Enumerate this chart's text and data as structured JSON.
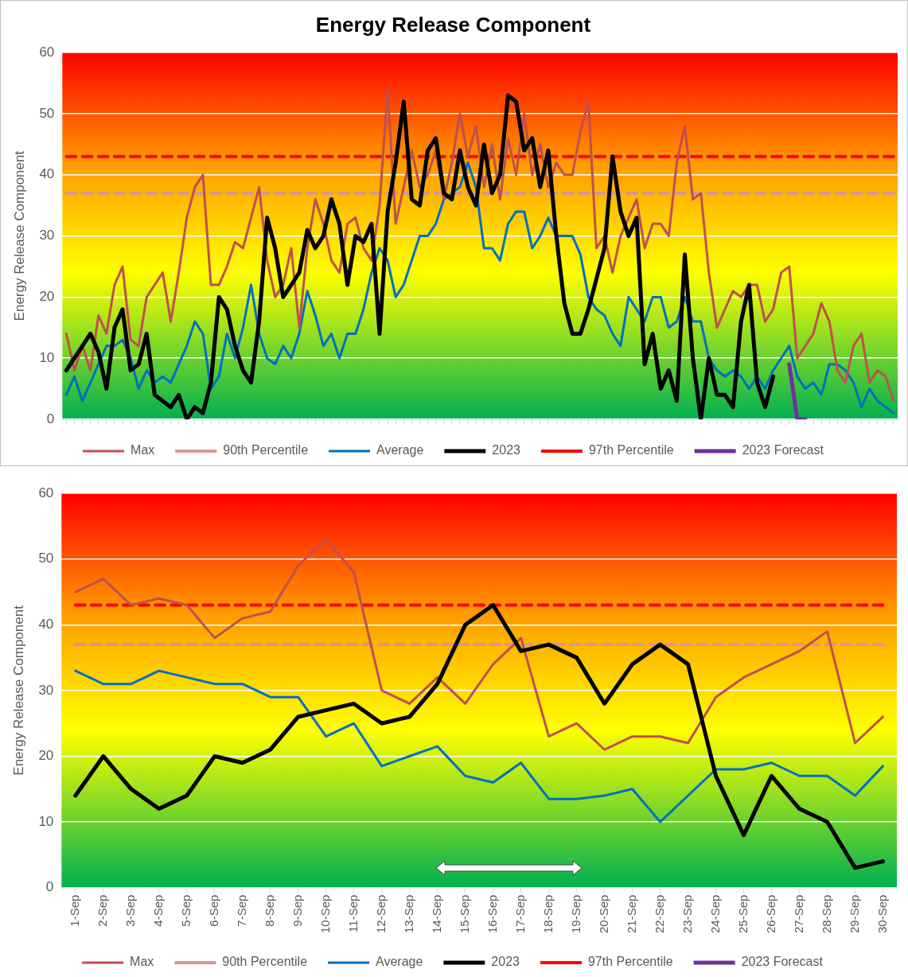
{
  "chart_data": [
    {
      "type": "line",
      "title": "Energy Release Component",
      "ylabel": "Energy Release Component",
      "categories": [
        null,
        null,
        null,
        null,
        null,
        null,
        null,
        null,
        null,
        null,
        null,
        null,
        null,
        null,
        null,
        null,
        null,
        null,
        null,
        null,
        null,
        null,
        null,
        null,
        null,
        null,
        null,
        null,
        null,
        null,
        null,
        null,
        null,
        null,
        null,
        null,
        null,
        null,
        null,
        null,
        null,
        null,
        null,
        null,
        null,
        null,
        null,
        null,
        null,
        null,
        null,
        null,
        null,
        null,
        null,
        null,
        null,
        null,
        null,
        null,
        null,
        null,
        null,
        null,
        null,
        null,
        null,
        null,
        null,
        null,
        null,
        null,
        null,
        null,
        null,
        null,
        null,
        null,
        null,
        null,
        null,
        null,
        null,
        null,
        null,
        null,
        null,
        null,
        null,
        null,
        null,
        null,
        null,
        null,
        null,
        null,
        null,
        null,
        null,
        null,
        null,
        null,
        null,
        null
      ],
      "series": [
        {
          "name": "Max",
          "color": "#c0504d",
          "values": [
            14,
            8,
            12,
            8,
            17,
            14,
            22,
            25,
            13,
            12,
            20,
            22,
            24,
            16,
            24,
            33,
            38,
            40,
            22,
            22,
            25,
            29,
            28,
            33,
            38,
            26,
            20,
            22,
            28,
            15,
            28,
            36,
            32,
            26,
            24,
            32,
            33,
            28,
            26,
            35,
            54,
            32,
            38,
            44,
            38,
            40,
            44,
            36,
            42,
            50,
            43,
            48,
            38,
            45,
            36,
            46,
            40,
            50,
            40,
            45,
            38,
            42,
            40,
            40,
            47,
            52,
            28,
            30,
            24,
            30,
            33,
            36,
            28,
            32,
            32,
            30,
            42,
            48,
            36,
            37,
            24,
            15,
            18,
            21,
            20,
            22,
            22,
            16,
            18,
            24,
            25,
            10,
            12,
            14,
            19,
            16,
            8,
            6,
            12,
            14,
            6,
            8,
            7,
            3
          ]
        },
        {
          "name": "90th Percentile",
          "color": "#d99694",
          "line_style": "dashed",
          "values": [
            37,
            37,
            37,
            37,
            37,
            37,
            37,
            37,
            37,
            37,
            37,
            37,
            37,
            37,
            37,
            37,
            37,
            37,
            37,
            37,
            37,
            37,
            37,
            37,
            37,
            37,
            37,
            37,
            37,
            37,
            37,
            37,
            37,
            37,
            37,
            37,
            37,
            37,
            37,
            37,
            37,
            37,
            37,
            37,
            37,
            37,
            37,
            37,
            37,
            37,
            37,
            37,
            37,
            37,
            37,
            37,
            37,
            37,
            37,
            37,
            37,
            37,
            37,
            37,
            37,
            37,
            37,
            37,
            37,
            37,
            37,
            37,
            37,
            37,
            37,
            37,
            37,
            37,
            37,
            37,
            37,
            37,
            37,
            37,
            37,
            37,
            37,
            37,
            37,
            37,
            37,
            37,
            37,
            37,
            37,
            37,
            37,
            37,
            37,
            37,
            37,
            37,
            37,
            37
          ]
        },
        {
          "name": "Average",
          "color": "#0070c0",
          "values": [
            4,
            7,
            3,
            6,
            9,
            12,
            12,
            13,
            10,
            5,
            8,
            6,
            7,
            6,
            9,
            12,
            16,
            14,
            5,
            7,
            14,
            10,
            15,
            22,
            14,
            10,
            9,
            12,
            10,
            14,
            21,
            17,
            12,
            14,
            10,
            14,
            14,
            18,
            24,
            28,
            26,
            20,
            22,
            26,
            30,
            30,
            32,
            36,
            37,
            38,
            42,
            38,
            28,
            28,
            26,
            32,
            34,
            34,
            28,
            30,
            33,
            30,
            30,
            30,
            27,
            20,
            18,
            17,
            14,
            12,
            20,
            18,
            16,
            20,
            20,
            15,
            16,
            20,
            16,
            16,
            10,
            8,
            7,
            8,
            7,
            5,
            7,
            5,
            8,
            10,
            12,
            7,
            5,
            6,
            4,
            9,
            9,
            8,
            6,
            2,
            5,
            3,
            2,
            1
          ]
        },
        {
          "name": "2023",
          "color": "#000000",
          "values": [
            8,
            10,
            12,
            14,
            11,
            5,
            15,
            18,
            8,
            9,
            14,
            4,
            3,
            2,
            4,
            0,
            2,
            1,
            6,
            20,
            18,
            12,
            8,
            6,
            16,
            33,
            28,
            20,
            22,
            24,
            31,
            28,
            30,
            36,
            32,
            22,
            30,
            29,
            32,
            14,
            34,
            42,
            52,
            36,
            35,
            44,
            46,
            37,
            36,
            44,
            38,
            35,
            45,
            37,
            40,
            53,
            52,
            44,
            46,
            38,
            44,
            30,
            19,
            14,
            14,
            18,
            23,
            28,
            43,
            34,
            30,
            33,
            9,
            14,
            5,
            8,
            3,
            27,
            10,
            0,
            10,
            4,
            4,
            2,
            16,
            22,
            6,
            2,
            7,
            null,
            null,
            null,
            null,
            null,
            null,
            null,
            null,
            null,
            null,
            null,
            null,
            null,
            null,
            null
          ]
        },
        {
          "name": "97th Percentile",
          "color": "#ff0000",
          "line_style": "dashed",
          "values": [
            43,
            43,
            43,
            43,
            43,
            43,
            43,
            43,
            43,
            43,
            43,
            43,
            43,
            43,
            43,
            43,
            43,
            43,
            43,
            43,
            43,
            43,
            43,
            43,
            43,
            43,
            43,
            43,
            43,
            43,
            43,
            43,
            43,
            43,
            43,
            43,
            43,
            43,
            43,
            43,
            43,
            43,
            43,
            43,
            43,
            43,
            43,
            43,
            43,
            43,
            43,
            43,
            43,
            43,
            43,
            43,
            43,
            43,
            43,
            43,
            43,
            43,
            43,
            43,
            43,
            43,
            43,
            43,
            43,
            43,
            43,
            43,
            43,
            43,
            43,
            43,
            43,
            43,
            43,
            43,
            43,
            43,
            43,
            43,
            43,
            43,
            43,
            43,
            43,
            43,
            43,
            43,
            43,
            43,
            43,
            43,
            43,
            43,
            43,
            43,
            43,
            43,
            43,
            43
          ]
        },
        {
          "name": "2023 Forecast",
          "color": "#7030a0",
          "values": [
            null,
            null,
            null,
            null,
            null,
            null,
            null,
            null,
            null,
            null,
            null,
            null,
            null,
            null,
            null,
            null,
            null,
            null,
            null,
            null,
            null,
            null,
            null,
            null,
            null,
            null,
            null,
            null,
            null,
            null,
            null,
            null,
            null,
            null,
            null,
            null,
            null,
            null,
            null,
            null,
            null,
            null,
            null,
            null,
            null,
            null,
            null,
            null,
            null,
            null,
            null,
            null,
            null,
            null,
            null,
            null,
            null,
            null,
            null,
            null,
            null,
            null,
            null,
            null,
            null,
            null,
            null,
            null,
            null,
            null,
            null,
            null,
            null,
            null,
            null,
            null,
            null,
            null,
            null,
            null,
            null,
            null,
            null,
            null,
            null,
            null,
            null,
            null,
            null,
            null,
            9,
            0,
            0,
            null,
            null,
            null,
            null,
            null,
            null,
            null,
            null,
            null,
            null,
            null
          ]
        }
      ],
      "ylim": [
        0,
        60
      ],
      "yticks": [
        0,
        10,
        20,
        30,
        40,
        50,
        60
      ],
      "grid": "y",
      "legend": "bottom",
      "tick_labels": "y",
      "marker": "none"
    },
    {
      "type": "line",
      "ylabel": "Energy Release Component",
      "categories": [
        "1-Sep",
        "2-Sep",
        "3-Sep",
        "4-Sep",
        "5-Sep",
        "6-Sep",
        "7-Sep",
        "8-Sep",
        "9-Sep",
        "10-Sep",
        "11-Sep",
        "12-Sep",
        "13-Sep",
        "14-Sep",
        "15-Sep",
        "16-Sep",
        "17-Sep",
        "18-Sep",
        "19-Sep",
        "20-Sep",
        "21-Sep",
        "22-Sep",
        "23-Sep",
        "24-Sep",
        "25-Sep",
        "26-Sep",
        "27-Sep",
        "28-Sep",
        "29-Sep",
        "30-Sep"
      ],
      "series": [
        {
          "name": "Max",
          "color": "#c0504d",
          "values": [
            45,
            47,
            43,
            44,
            43,
            38,
            41,
            42,
            49,
            53,
            48,
            30,
            28,
            32,
            28,
            34,
            38,
            23,
            25,
            21,
            23,
            23,
            22,
            29,
            32,
            34,
            36,
            39,
            22,
            26
          ]
        },
        {
          "name": "90th Percentile",
          "color": "#d99694",
          "line_style": "dashed",
          "values": [
            37,
            37,
            37,
            37,
            37,
            37,
            37,
            37,
            37,
            37,
            37,
            37,
            37,
            37,
            37,
            37,
            37,
            37,
            37,
            37,
            37,
            37,
            37,
            37,
            37,
            37,
            37,
            37,
            37,
            37
          ]
        },
        {
          "name": "Average",
          "color": "#0070c0",
          "values": [
            33,
            31,
            31,
            33,
            32,
            31,
            31,
            29,
            29,
            23,
            25,
            18.5,
            20,
            21.5,
            17,
            16,
            19,
            13.5,
            13.5,
            14,
            15,
            10,
            14,
            18,
            18,
            19,
            17,
            17,
            14,
            18.5
          ]
        },
        {
          "name": "2023",
          "color": "#000000",
          "values": [
            14,
            20,
            15,
            12,
            14,
            20,
            19,
            21,
            26,
            27,
            28,
            25,
            26,
            31,
            40,
            43,
            36,
            37,
            35,
            28,
            34,
            37,
            34,
            17,
            8,
            17,
            12,
            10,
            3,
            4
          ]
        },
        {
          "name": "97th Percentile",
          "color": "#ff0000",
          "line_style": "dashed",
          "values": [
            43,
            43,
            43,
            43,
            43,
            43,
            43,
            43,
            43,
            43,
            43,
            43,
            43,
            43,
            43,
            43,
            43,
            43,
            43,
            43,
            43,
            43,
            43,
            43,
            43,
            43,
            43,
            43,
            43,
            43
          ]
        },
        {
          "name": "2023 Forecast",
          "color": "#7030a0",
          "values": [
            null,
            null,
            null,
            null,
            null,
            null,
            null,
            null,
            null,
            null,
            null,
            null,
            null,
            null,
            null,
            null,
            null,
            null,
            null,
            null,
            null,
            null,
            null,
            null,
            null,
            null,
            null,
            null,
            null,
            null
          ]
        }
      ],
      "ylim": [
        0,
        60
      ],
      "yticks": [
        0,
        10,
        20,
        30,
        40,
        50,
        60
      ],
      "grid": "y",
      "legend": "bottom",
      "marker": "none"
    }
  ]
}
